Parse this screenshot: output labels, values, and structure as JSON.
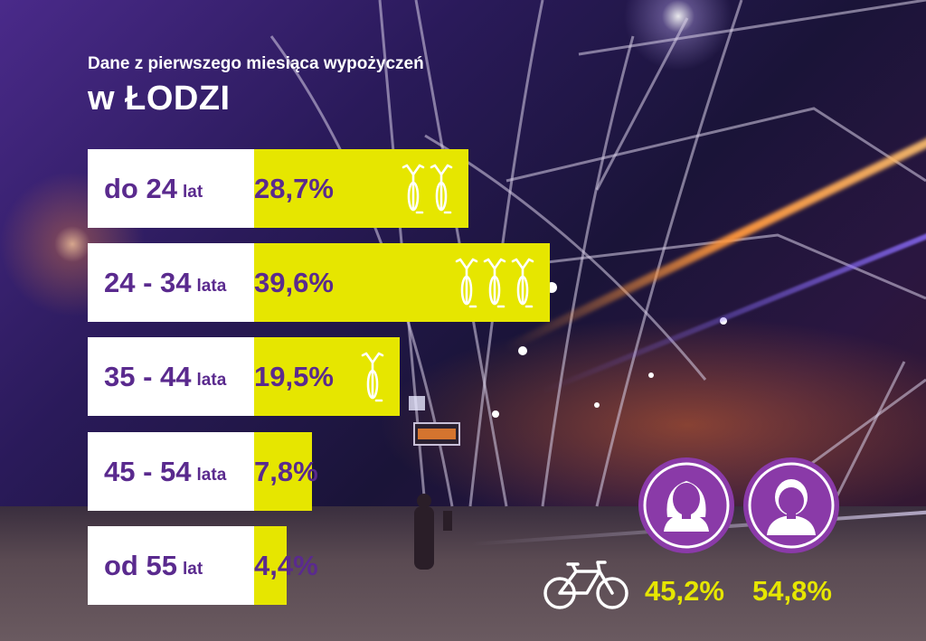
{
  "header": {
    "subtitle": "Dane z pierwszego miesiąca wypożyczeń",
    "title": "w ŁODZI"
  },
  "chart_data": [
    {
      "type": "bar",
      "categories": [
        "do 24 lat",
        "24 - 34 lata",
        "35 - 44 lata",
        "45 - 54 lata",
        "od 55 lat"
      ],
      "values": [
        28.7,
        39.6,
        19.5,
        7.8,
        4.4
      ],
      "value_labels": [
        "28,7%",
        "39,6%",
        "19,5%",
        "7,8%",
        "4,4%"
      ],
      "icon_counts": [
        2,
        3,
        1,
        0,
        0
      ],
      "unit": "%",
      "orientation": "horizontal",
      "colors": {
        "bar": "#e6e600",
        "label_box": "#ffffff",
        "text": "#5a2a8e"
      }
    },
    {
      "type": "bar",
      "categories": [
        "kobiety",
        "mężczyźni"
      ],
      "values": [
        45.2,
        54.8
      ],
      "value_labels": [
        "45,2%",
        "54,8%"
      ],
      "icons": [
        "female-avatar-icon",
        "male-avatar-icon"
      ],
      "colors": {
        "avatar": "#8a3aa8",
        "text": "#e6e600"
      }
    }
  ],
  "rows": [
    {
      "main": "do 24",
      "unit": "lat",
      "pct": "28,7%"
    },
    {
      "main": "24 - 34",
      "unit": "lata",
      "pct": "39,6%"
    },
    {
      "main": "35 - 44",
      "unit": "lata",
      "pct": "19,5%"
    },
    {
      "main": "45 - 54",
      "unit": "lata",
      "pct": "7,8%"
    },
    {
      "main": "od 55",
      "unit": "lat",
      "pct": "4,4%"
    }
  ],
  "gender": {
    "female_pct": "45,2%",
    "male_pct": "54,8%"
  }
}
